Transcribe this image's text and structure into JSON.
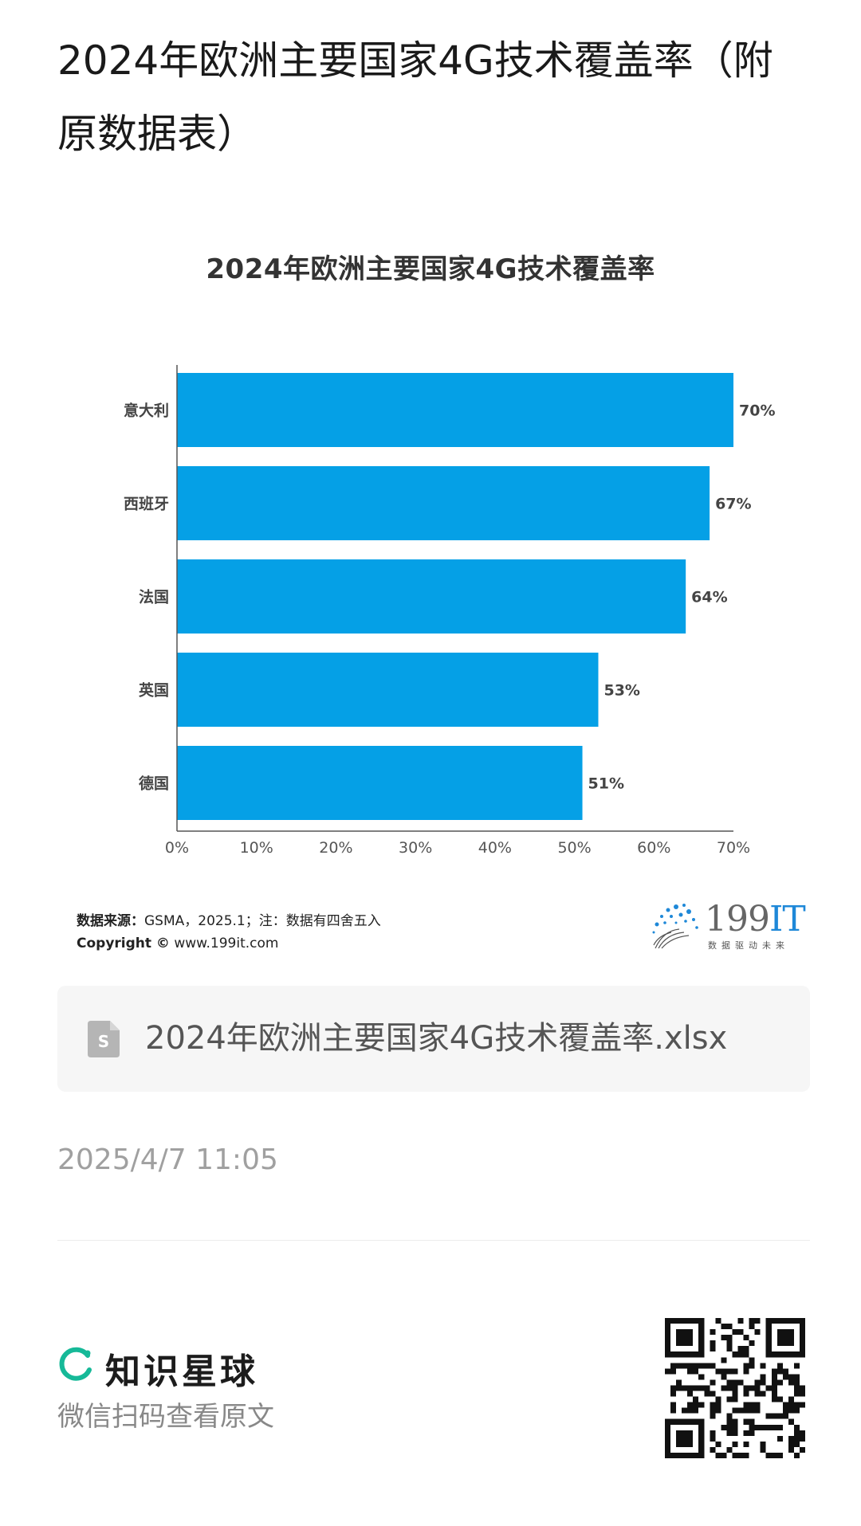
{
  "article": {
    "title": "2024年欧洲主要国家4G技术覆盖率（附原数据表）"
  },
  "chart_data": {
    "type": "bar",
    "orientation": "horizontal",
    "title": "2024年欧洲主要国家4G技术覆盖率",
    "categories": [
      "意大利",
      "西班牙",
      "法国",
      "英国",
      "德国"
    ],
    "values": [
      70,
      67,
      64,
      53,
      51
    ],
    "value_labels": [
      "70%",
      "67%",
      "64%",
      "53%",
      "51%"
    ],
    "xlim": [
      0,
      70
    ],
    "xticks": [
      "0%",
      "10%",
      "20%",
      "30%",
      "40%",
      "50%",
      "60%",
      "70%"
    ],
    "grid": false,
    "bar_color": "#05A0E6"
  },
  "source": {
    "label": "数据来源：",
    "text": "GSMA，2025.1；注：数据有四舍五入",
    "copyright_label": "Copyright ©",
    "copyright_text": "www.199it.com"
  },
  "logo": {
    "brand_num": "199",
    "brand_it": "IT",
    "slogan": "数据驱动未来"
  },
  "file": {
    "name": "2024年欧洲主要国家4G技术覆盖率.xlsx",
    "icon": "spreadsheet-file-icon"
  },
  "meta": {
    "timestamp": "2025/4/7 11:05"
  },
  "footer": {
    "brand_name": "知识星球",
    "scan_text": "微信扫码查看原文",
    "brand_color": "#16B998"
  }
}
